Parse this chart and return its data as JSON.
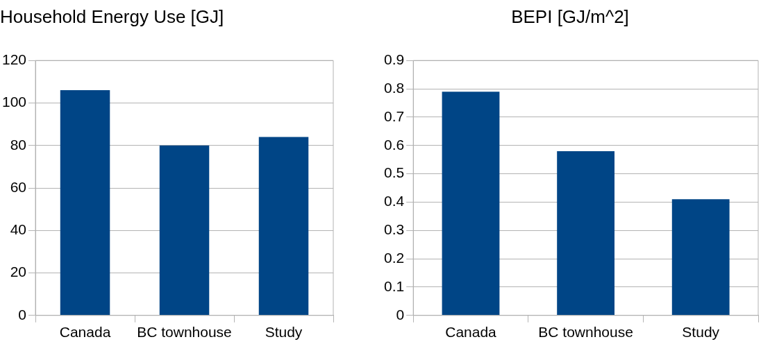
{
  "chart_data": [
    {
      "type": "bar",
      "title": "Household Energy Use [GJ]",
      "categories": [
        "Canada",
        "BC townhouse",
        "Study"
      ],
      "values": [
        106,
        80,
        84
      ],
      "color": "#004586",
      "ylim": [
        0,
        120
      ],
      "yticks": [
        0,
        20,
        40,
        60,
        80,
        100,
        120
      ],
      "grid": "y",
      "legend": false
    },
    {
      "type": "bar",
      "title": "BEPI [GJ/m^2]",
      "categories": [
        "Canada",
        "BC townhouse",
        "Study"
      ],
      "values": [
        0.79,
        0.58,
        0.41
      ],
      "color": "#004586",
      "ylim": [
        0,
        0.9
      ],
      "yticks": [
        0,
        0.1,
        0.2,
        0.3,
        0.4,
        0.5,
        0.6,
        0.7,
        0.8,
        0.9
      ],
      "grid": "y",
      "legend": false
    }
  ]
}
